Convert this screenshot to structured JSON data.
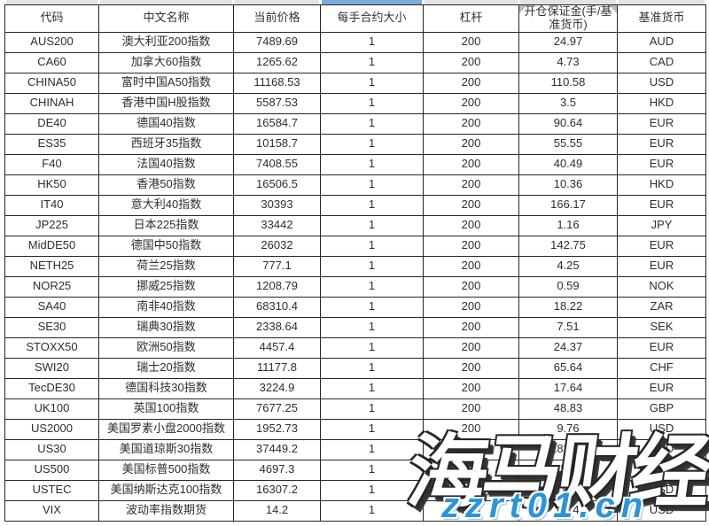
{
  "table": {
    "columns": [
      {
        "key": "code",
        "label": "代码"
      },
      {
        "key": "name",
        "label": "中文名称"
      },
      {
        "key": "price",
        "label": "当前价格"
      },
      {
        "key": "contract_size",
        "label": "每手合约大小"
      },
      {
        "key": "leverage",
        "label": "杠杆"
      },
      {
        "key": "margin",
        "label": "开仓保证金(手/基准货币)"
      },
      {
        "key": "currency",
        "label": "基准货币"
      }
    ],
    "selected_column_key": "contract_size",
    "rows": [
      {
        "code": "AUS200",
        "name": "澳大利亚200指数",
        "price": "7489.69",
        "contract_size": "1",
        "leverage": "200",
        "margin": "24.97",
        "currency": "AUD"
      },
      {
        "code": "CA60",
        "name": "加拿大60指数",
        "price": "1265.62",
        "contract_size": "1",
        "leverage": "200",
        "margin": "4.73",
        "currency": "CAD"
      },
      {
        "code": "CHINA50",
        "name": "富时中国A50指数",
        "price": "11168.53",
        "contract_size": "1",
        "leverage": "200",
        "margin": "110.58",
        "currency": "USD"
      },
      {
        "code": "CHINAH",
        "name": "香港中国H股指数",
        "price": "5587.53",
        "contract_size": "1",
        "leverage": "200",
        "margin": "3.5",
        "currency": "HKD"
      },
      {
        "code": "DE40",
        "name": "德国40指数",
        "price": "16584.7",
        "contract_size": "1",
        "leverage": "200",
        "margin": "90.64",
        "currency": "EUR"
      },
      {
        "code": "ES35",
        "name": "西班牙35指数",
        "price": "10158.7",
        "contract_size": "1",
        "leverage": "200",
        "margin": "55.55",
        "currency": "EUR"
      },
      {
        "code": "F40",
        "name": "法国40指数",
        "price": "7408.55",
        "contract_size": "1",
        "leverage": "200",
        "margin": "40.49",
        "currency": "EUR"
      },
      {
        "code": "HK50",
        "name": "香港50指数",
        "price": "16506.5",
        "contract_size": "1",
        "leverage": "200",
        "margin": "10.36",
        "currency": "HKD"
      },
      {
        "code": "IT40",
        "name": "意大利40指数",
        "price": "30393",
        "contract_size": "1",
        "leverage": "200",
        "margin": "166.17",
        "currency": "EUR"
      },
      {
        "code": "JP225",
        "name": "日本225指数",
        "price": "33442",
        "contract_size": "1",
        "leverage": "200",
        "margin": "1.16",
        "currency": "JPY"
      },
      {
        "code": "MidDE50",
        "name": "德国中50指数",
        "price": "26032",
        "contract_size": "1",
        "leverage": "200",
        "margin": "142.75",
        "currency": "EUR"
      },
      {
        "code": "NETH25",
        "name": "荷兰25指数",
        "price": "777.1",
        "contract_size": "1",
        "leverage": "200",
        "margin": "4.25",
        "currency": "EUR"
      },
      {
        "code": "NOR25",
        "name": "挪威25指数",
        "price": "1208.79",
        "contract_size": "1",
        "leverage": "200",
        "margin": "0.59",
        "currency": "NOK"
      },
      {
        "code": "SA40",
        "name": "南非40指数",
        "price": "68310.4",
        "contract_size": "1",
        "leverage": "200",
        "margin": "18.22",
        "currency": "ZAR"
      },
      {
        "code": "SE30",
        "name": "瑞典30指数",
        "price": "2338.64",
        "contract_size": "1",
        "leverage": "200",
        "margin": "7.51",
        "currency": "SEK"
      },
      {
        "code": "STOXX50",
        "name": "欧洲50指数",
        "price": "4457.4",
        "contract_size": "1",
        "leverage": "200",
        "margin": "24.37",
        "currency": "EUR"
      },
      {
        "code": "SWI20",
        "name": "瑞士20指数",
        "price": "11177.8",
        "contract_size": "1",
        "leverage": "200",
        "margin": "65.64",
        "currency": "CHF"
      },
      {
        "code": "TecDE30",
        "name": "德国科技30指数",
        "price": "3224.9",
        "contract_size": "1",
        "leverage": "200",
        "margin": "17.64",
        "currency": "EUR"
      },
      {
        "code": "UK100",
        "name": "英国100指数",
        "price": "7677.25",
        "contract_size": "1",
        "leverage": "200",
        "margin": "48.83",
        "currency": "GBP"
      },
      {
        "code": "US2000",
        "name": "美国罗素小盘2000指数",
        "price": "1952.73",
        "contract_size": "1",
        "leverage": "200",
        "margin": "9.76",
        "currency": "USD"
      },
      {
        "code": "US30",
        "name": "美国道琼斯30指数",
        "price": "37449.2",
        "contract_size": "1",
        "leverage": "200",
        "margin": "183.62",
        "currency": "USD"
      },
      {
        "code": "US500",
        "name": "美国标普500指数",
        "price": "4697.3",
        "contract_size": "1",
        "leverage": "200",
        "margin": "23.47",
        "currency": "USD"
      },
      {
        "code": "USTEC",
        "name": "美国纳斯达克100指数",
        "price": "16307.2",
        "contract_size": "1",
        "leverage": "200",
        "margin": "81.45",
        "currency": "USD"
      },
      {
        "code": "VIX",
        "name": "波动率指数期货",
        "price": "14.2",
        "contract_size": "1",
        "leverage": "200",
        "margin": "0.14",
        "currency": "USD"
      }
    ]
  },
  "watermark": {
    "brand": "海马财经",
    "url": "zzrt01.cn"
  },
  "colors": {
    "selection_blue": "#7badde",
    "column_strip_grey": "#e3e3e3",
    "border": "#262626",
    "watermark_url_blue": "#2e93d8"
  }
}
